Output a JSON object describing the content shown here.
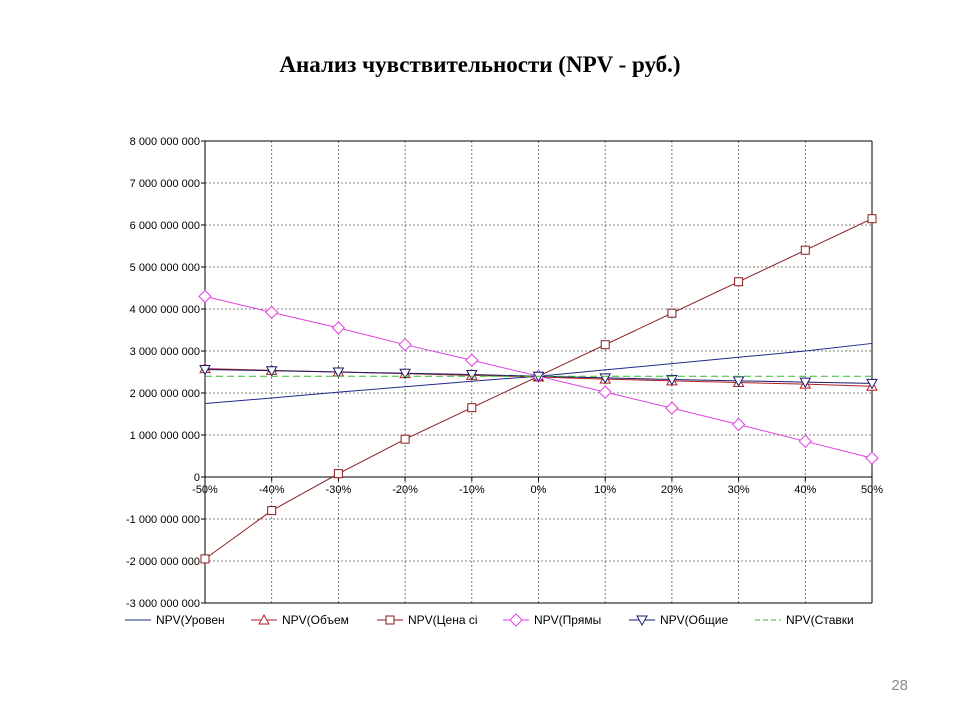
{
  "slide": {
    "title": "Анализ чувствительности (NPV - руб.)",
    "page_number": "28"
  },
  "chart_data": {
    "type": "line",
    "title": "Анализ чувствительности (NPV - руб.)",
    "xlabel": "",
    "ylabel": "",
    "x": [
      -50,
      -40,
      -30,
      -20,
      -10,
      0,
      10,
      20,
      30,
      40,
      50
    ],
    "x_tick_labels": [
      "-50%",
      "-40%",
      "-30%",
      "-20%",
      "-10%",
      "0%",
      "10%",
      "20%",
      "30%",
      "40%",
      "50%"
    ],
    "xlim": [
      -50,
      50
    ],
    "ylim": [
      -3000000000,
      8000000000
    ],
    "y_ticks": [
      -3000000000,
      -2000000000,
      -1000000000,
      0,
      1000000000,
      2000000000,
      3000000000,
      4000000000,
      5000000000,
      6000000000,
      7000000000,
      8000000000
    ],
    "y_tick_labels": [
      "-3 000 000 000",
      "-2 000 000 000",
      "-1 000 000 000",
      "0",
      "1 000 000 000",
      "2 000 000 000",
      "3 000 000 000",
      "4 000 000 000",
      "5 000 000 000",
      "6 000 000 000",
      "7 000 000 000",
      "8 000 000 000"
    ],
    "grid": true,
    "legend_position": "bottom",
    "series": [
      {
        "name": "NPV(Уровен",
        "color": "#1f2a8c",
        "marker": "none",
        "dash": "solid",
        "values": [
          1750000000,
          1880000000,
          2020000000,
          2150000000,
          2280000000,
          2400000000,
          2550000000,
          2700000000,
          2850000000,
          3000000000,
          3180000000
        ]
      },
      {
        "name": "NPV(Объем",
        "color": "#b22222",
        "marker": "triangle-up",
        "dash": "solid",
        "values": [
          2580000000,
          2540000000,
          2500000000,
          2460000000,
          2420000000,
          2380000000,
          2330000000,
          2290000000,
          2250000000,
          2210000000,
          2160000000
        ]
      },
      {
        "name": "NPV(Цена сі",
        "color": "#8b1a1a",
        "marker": "square",
        "dash": "solid",
        "values": [
          -1950000000,
          -800000000,
          80000000,
          900000000,
          1650000000,
          2400000000,
          3150000000,
          3900000000,
          4650000000,
          5400000000,
          6150000000
        ]
      },
      {
        "name": "NPV(Прямы",
        "color": "#e040e0",
        "marker": "diamond",
        "dash": "solid",
        "values": [
          4300000000,
          3920000000,
          3550000000,
          3150000000,
          2780000000,
          2400000000,
          2020000000,
          1640000000,
          1250000000,
          850000000,
          450000000
        ]
      },
      {
        "name": "NPV(Общие",
        "color": "#1a1a6e",
        "marker": "triangle-down",
        "dash": "solid",
        "values": [
          2560000000,
          2530000000,
          2500000000,
          2470000000,
          2440000000,
          2400000000,
          2360000000,
          2320000000,
          2290000000,
          2260000000,
          2230000000
        ]
      },
      {
        "name": "NPV(Ставки",
        "color": "#33bb33",
        "marker": "none",
        "dash": "dashed",
        "values": [
          2400000000,
          2400000000,
          2400000000,
          2400000000,
          2400000000,
          2400000000,
          2400000000,
          2400000000,
          2400000000,
          2400000000,
          2400000000
        ]
      }
    ]
  }
}
